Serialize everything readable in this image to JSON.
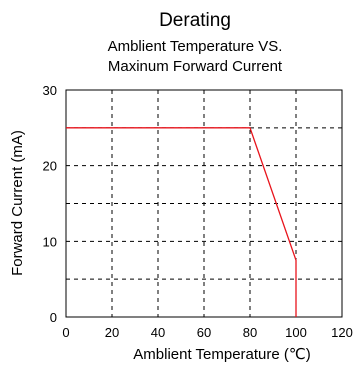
{
  "chart_data": {
    "type": "line",
    "title": "Derating",
    "subtitle_lines": [
      "Amblient Temperature VS.",
      "Maxinum Forward Current"
    ],
    "xlabel": "Amblient Temperature (℃)",
    "ylabel": "Forward Current (mA)",
    "xlim": [
      0,
      120
    ],
    "ylim": [
      0,
      30
    ],
    "xticks": [
      0,
      20,
      40,
      60,
      80,
      100,
      120
    ],
    "xtick_labels": [
      "0",
      "20",
      "40",
      "60",
      "80",
      "100",
      "120"
    ],
    "yticks": [
      0,
      10,
      20,
      30
    ],
    "ytick_labels": [
      "0",
      "10",
      "20",
      "30"
    ],
    "grid": true,
    "grid_style": "dashed",
    "x_grid": [
      20,
      40,
      60,
      80,
      100
    ],
    "y_grid": [
      5,
      10,
      15,
      20,
      25
    ],
    "series": [
      {
        "color": "#e8141c",
        "x": [
          0,
          80,
          100,
          100
        ],
        "y": [
          25,
          25,
          7.5,
          0
        ]
      }
    ]
  }
}
